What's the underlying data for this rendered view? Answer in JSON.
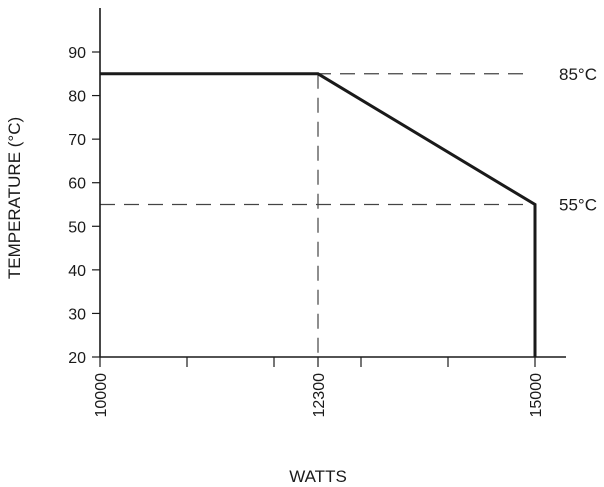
{
  "chart_data": {
    "type": "line",
    "xlabel": "WATTS",
    "ylabel": "TEMPERATURE (°C)",
    "x_ticks": [
      10000,
      12300,
      15000
    ],
    "y_ticks": [
      20,
      30,
      40,
      50,
      60,
      70,
      80,
      90
    ],
    "ylim": [
      20,
      100
    ],
    "xlim": [
      10000,
      15400
    ],
    "series": [
      {
        "x": [
          10000,
          12500,
          15000,
          15000
        ],
        "y": [
          85,
          85,
          55,
          20
        ]
      }
    ],
    "reference_lines": [
      {
        "orientation": "horizontal",
        "value": 85,
        "label": "85°C"
      },
      {
        "orientation": "horizontal",
        "value": 55,
        "label": "55°C"
      },
      {
        "orientation": "vertical",
        "value": 12500
      }
    ]
  }
}
